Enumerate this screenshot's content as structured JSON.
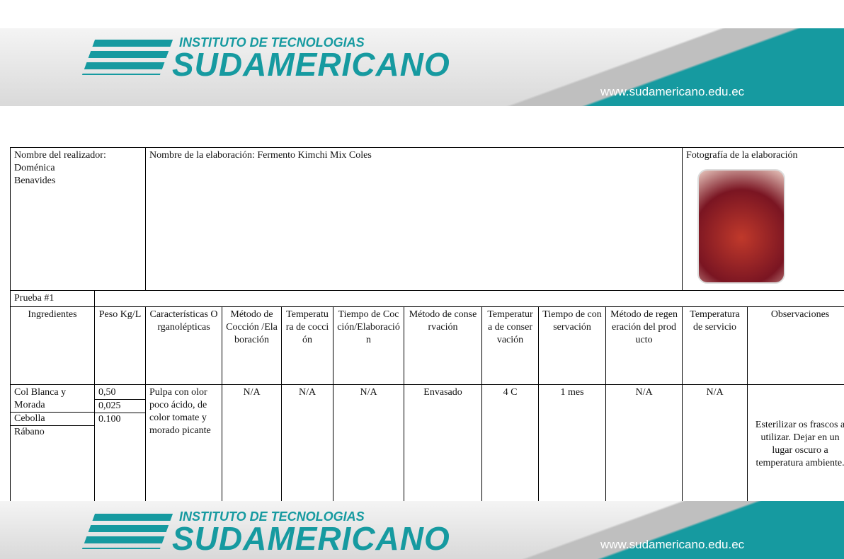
{
  "header": {
    "institute": "INSTITUTO DE TECNOLOGIAS",
    "brand": "SUDAMERICANO",
    "url": "www.sudamericano.edu.ec"
  },
  "footer": {
    "institute": "INSTITUTO DE TECNOLOGIAS",
    "brand": "SUDAMERICANO",
    "url": "www.sudamericano.edu.ec"
  },
  "info": {
    "author_label": "Nombre del realizador:",
    "author_lines": [
      "Doménica",
      "Benavides"
    ],
    "dish": "Nombre de la elaboración: Fermento Kimchi Mix Coles",
    "photo_label": "Fotografía de la elaboración"
  },
  "test": "Prueba #1",
  "columns": [
    "Ingredientes",
    "Peso Kg/L",
    "Características Organolépticas",
    "Método de Cocción /Elaboración",
    "Temperatura de cocción",
    "Tiempo de Cocción/Elaboración",
    "Método de conservación",
    "Temperatura de conservación",
    "Tiempo de conservación",
    "Método de regeneración del producto",
    "Temperatura de servicio",
    "Observaciones"
  ],
  "ingredients": [
    [
      "Col Blanca y Morada",
      "0,50"
    ],
    [
      "Cebolla",
      "0,025"
    ],
    [
      "Rábano",
      "0.100"
    ]
  ],
  "details": [
    "Pulpa con olor poco ácido, de color tomate y morado picante",
    "N/A",
    "N/A",
    "N/A",
    "Envasado",
    "4 C",
    "1 mes",
    "N/A",
    "N/A",
    "Esterilizar os frascos a utilizar. Dejar en un lugar oscuro a temperatura ambiente."
  ]
}
